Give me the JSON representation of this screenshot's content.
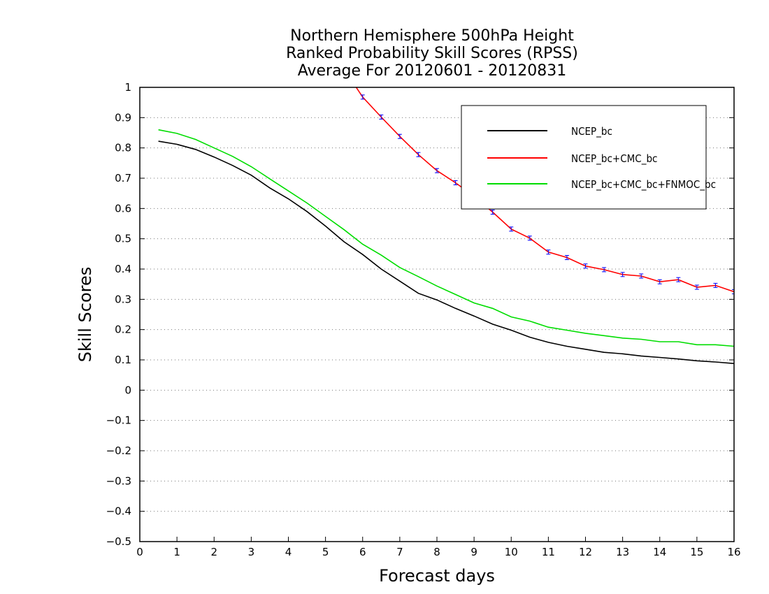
{
  "chart_data": {
    "type": "line",
    "title": [
      "Northern Hemisphere 500hPa Height",
      "Ranked Probability Skill Scores (RPSS)",
      "Average For 20120601 - 20120831"
    ],
    "xlabel": "Forecast days",
    "ylabel": "Skill Scores",
    "xlim": [
      0,
      16
    ],
    "ylim": [
      -0.5,
      1
    ],
    "xticks": [
      "0",
      "1",
      "2",
      "3",
      "4",
      "5",
      "6",
      "7",
      "8",
      "9",
      "10",
      "11",
      "12",
      "13",
      "14",
      "15",
      "16"
    ],
    "yticks": [
      "−0.5",
      "−0.4",
      "−0.3",
      "−0.2",
      "−0.1",
      "0",
      "0.1",
      "0.2",
      "0.3",
      "0.4",
      "0.5",
      "0.6",
      "0.7",
      "0.8",
      "0.9",
      "1"
    ],
    "grid": "horizontal-dotted",
    "legend_position": "top-right",
    "series": [
      {
        "name": "NCEP_bc",
        "color": "#000000",
        "x": [
          0.5,
          1,
          1.5,
          2,
          2.5,
          3,
          3.5,
          4,
          4.5,
          5,
          5.5,
          6,
          6.5,
          7,
          7.5,
          8,
          8.5,
          9,
          9.5,
          10,
          10.5,
          11,
          11.5,
          12,
          12.5,
          13,
          13.5,
          14,
          14.5,
          15,
          15.5,
          16
        ],
        "values": [
          0.822,
          0.812,
          0.795,
          0.77,
          0.742,
          0.71,
          0.668,
          0.632,
          0.59,
          0.542,
          0.49,
          0.448,
          0.4,
          0.36,
          0.32,
          0.298,
          0.27,
          0.245,
          0.218,
          0.198,
          0.175,
          0.158,
          0.145,
          0.135,
          0.125,
          0.12,
          0.113,
          0.108,
          0.103,
          0.097,
          0.093,
          0.088
        ]
      },
      {
        "name": "NCEP_bc+CMC_bc",
        "color": "#ff0000",
        "marker_color": "#0000ff",
        "x": [
          5.5,
          6,
          6.5,
          7,
          7.5,
          8,
          8.5,
          9,
          9.5,
          10,
          10.5,
          11,
          11.5,
          12,
          12.5,
          13,
          13.5,
          14,
          14.5,
          15,
          15.5,
          16
        ],
        "values": [
          1.06,
          0.968,
          0.902,
          0.838,
          0.778,
          0.725,
          0.685,
          0.64,
          0.588,
          0.532,
          0.502,
          0.456,
          0.438,
          0.41,
          0.398,
          0.382,
          0.377,
          0.358,
          0.365,
          0.34,
          0.346,
          0.325
        ]
      },
      {
        "name": "NCEP_bc+CMC_bc+FNMOC_bc",
        "color": "#00dd00",
        "x": [
          0.5,
          1,
          1.5,
          2,
          2.5,
          3,
          3.5,
          4,
          4.5,
          5,
          5.5,
          6,
          6.5,
          7,
          7.5,
          8,
          8.5,
          9,
          9.5,
          10,
          10.5,
          11,
          11.5,
          12,
          12.5,
          13,
          13.5,
          14,
          14.5,
          15,
          15.5,
          16
        ],
        "values": [
          0.86,
          0.848,
          0.828,
          0.8,
          0.772,
          0.738,
          0.698,
          0.658,
          0.618,
          0.574,
          0.53,
          0.482,
          0.446,
          0.405,
          0.375,
          0.344,
          0.316,
          0.288,
          0.27,
          0.242,
          0.228,
          0.208,
          0.198,
          0.188,
          0.18,
          0.172,
          0.168,
          0.16,
          0.16,
          0.15,
          0.15,
          0.145
        ]
      }
    ]
  }
}
